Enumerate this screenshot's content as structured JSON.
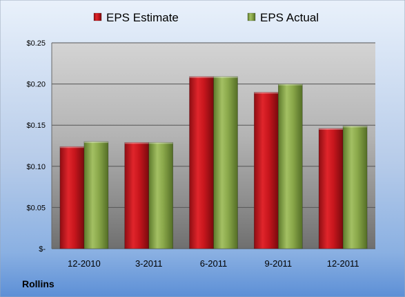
{
  "chart_data": {
    "type": "bar",
    "categories": [
      "12-2010",
      "3-2011",
      "6-2011",
      "9-2011",
      "12-2011"
    ],
    "series": [
      {
        "name": "EPS Estimate",
        "values": [
          0.124,
          0.129,
          0.209,
          0.19,
          0.146
        ],
        "color": "#c8161d"
      },
      {
        "name": "EPS Actual",
        "values": [
          0.13,
          0.129,
          0.209,
          0.2,
          0.149
        ],
        "color": "#8aa84a"
      }
    ],
    "yticks": [
      {
        "value": 0,
        "label": "$-"
      },
      {
        "value": 0.05,
        "label": "$0.05"
      },
      {
        "value": 0.1,
        "label": "$0.10"
      },
      {
        "value": 0.15,
        "label": "$0.15"
      },
      {
        "value": 0.2,
        "label": "$0.20"
      },
      {
        "value": 0.25,
        "label": "$0.25"
      }
    ],
    "ylim": [
      0,
      0.25
    ],
    "grid": true,
    "legend_position": "top",
    "title": "",
    "xlabel": "",
    "ylabel": ""
  },
  "company_label": "Rollins"
}
